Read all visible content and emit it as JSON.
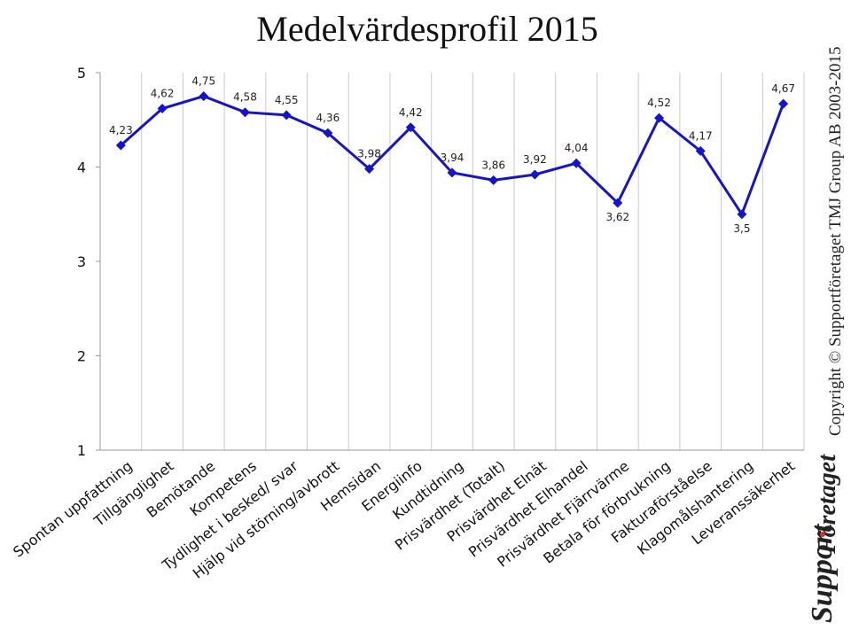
{
  "chart_data": {
    "type": "line",
    "title": "Medelvärdesprofil 2015",
    "categories": [
      "Spontan uppfattning",
      "Tillgänglighet",
      "Bemötande",
      "Kompetens",
      "Tydlighet i besked/ svar",
      "Hjälp vid störning/avbrott",
      "Hemsidan",
      "Energiinfo",
      "Kundtidning",
      "Prisvärdhet (Totalt)",
      "Prisvärdhet Elnät",
      "Prisvärdhet Elhandel",
      "Prisvärdhet Fjärrvärme",
      "Betala för förbrukning",
      "Fakturaförståelse",
      "Klagomålshantering",
      "Leveranssäkerhet"
    ],
    "values": [
      4.23,
      4.62,
      4.75,
      4.58,
      4.55,
      4.36,
      3.98,
      4.42,
      3.94,
      3.86,
      3.92,
      4.04,
      3.62,
      4.52,
      4.17,
      3.5,
      4.67
    ],
    "data_labels": [
      "4,23",
      "4,62",
      "4,75",
      "4,58",
      "4,55",
      "4,36",
      "3,98",
      "4,42",
      "3,94",
      "3,86",
      "3,92",
      "4,04",
      "3,62",
      "4,52",
      "4,17",
      "3,5",
      "4,67"
    ],
    "label_below": [
      false,
      false,
      false,
      false,
      false,
      false,
      false,
      false,
      false,
      false,
      false,
      false,
      true,
      false,
      false,
      true,
      false
    ],
    "yticks": [
      "1",
      "2",
      "3",
      "4",
      "5"
    ],
    "ylim": [
      1,
      5
    ],
    "grid": "vertical",
    "color": "#1515c8"
  },
  "copyright": "Copyright © Supportföretaget TMJ Group AB 2003-2015",
  "logo": {
    "word1": "Support",
    "word2": "Företaget"
  }
}
